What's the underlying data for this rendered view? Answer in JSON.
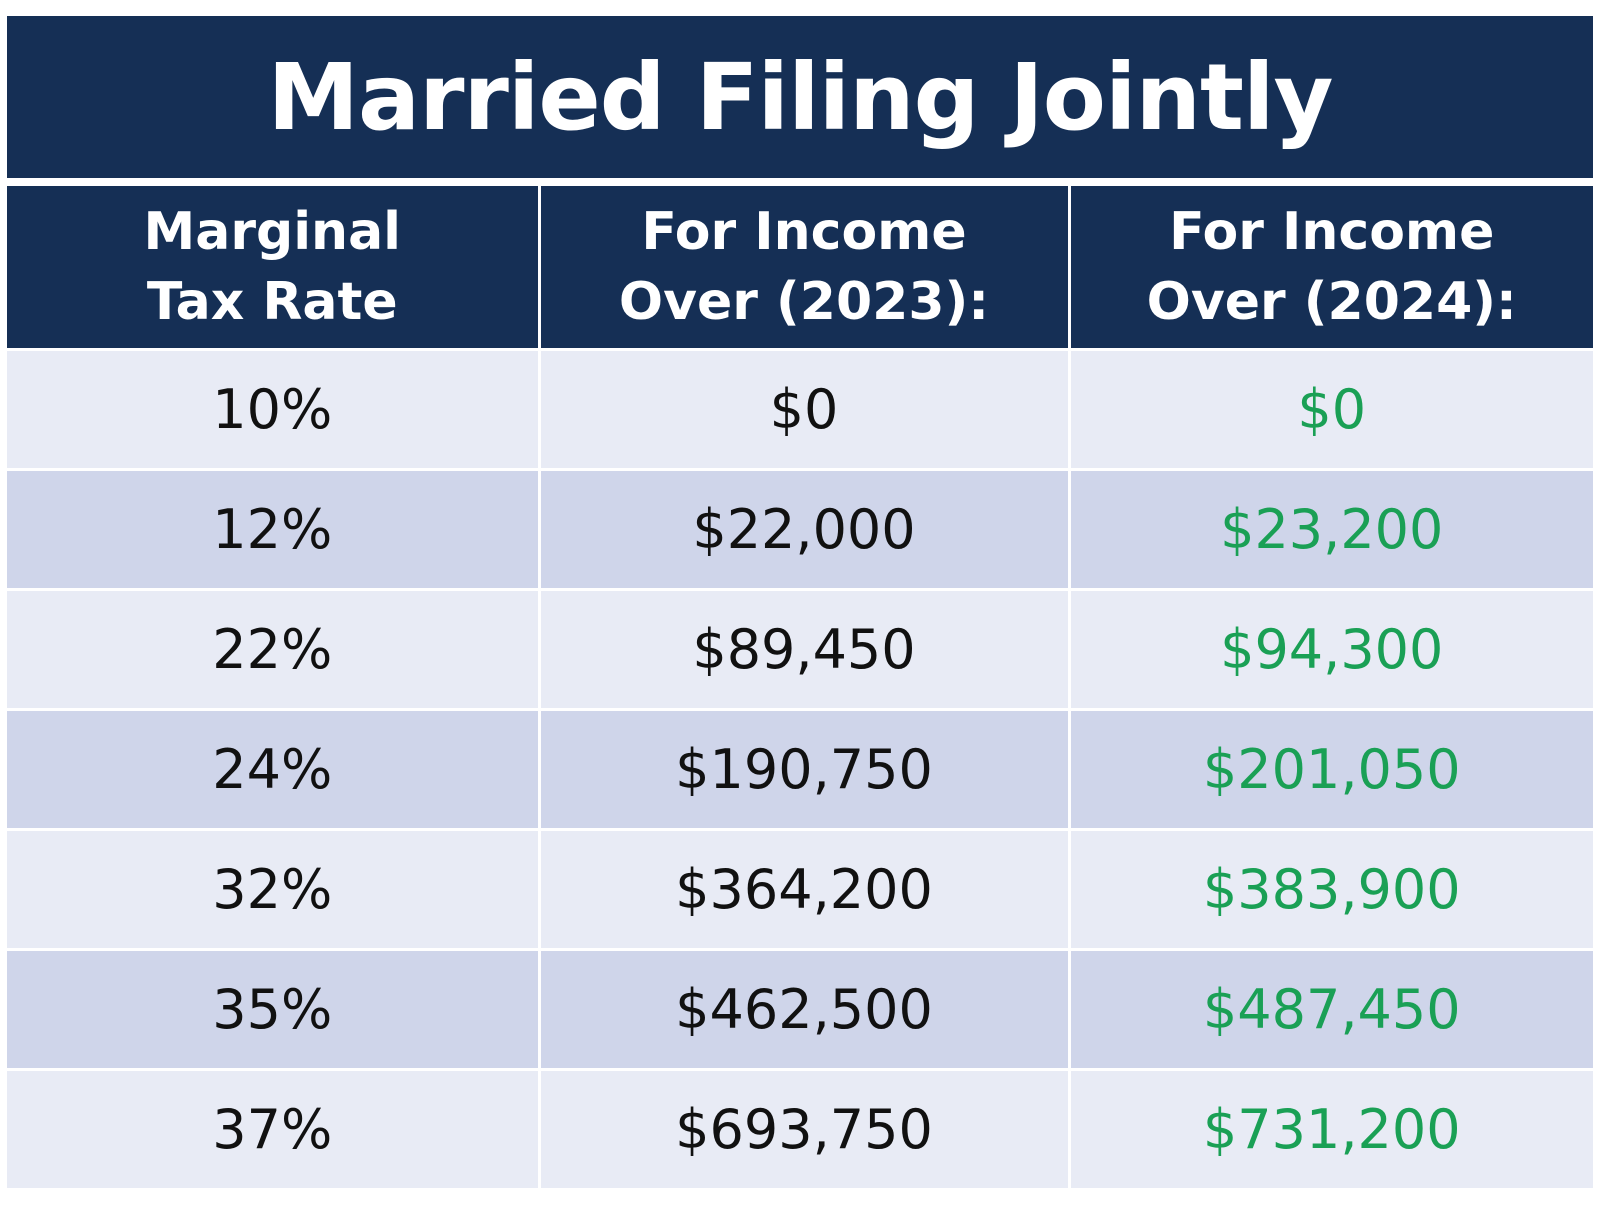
{
  "title": "Married Filing Jointly",
  "colors": {
    "header_bg": "#152f55",
    "header_text": "#ffffff",
    "row_light": "#e8ebf5",
    "row_dark": "#cfd5ea",
    "value_2024": "#1aa055",
    "value_text": "#111111"
  },
  "headers": [
    {
      "line1": "Marginal",
      "line2": "Tax Rate"
    },
    {
      "line1": "For Income",
      "line2": "Over (2023):"
    },
    {
      "line1": "For Income",
      "line2": "Over (2024):"
    }
  ],
  "rows": [
    {
      "rate": "10%",
      "y2023": "$0",
      "y2024": "$0"
    },
    {
      "rate": "12%",
      "y2023": "$22,000",
      "y2024": "$23,200"
    },
    {
      "rate": "22%",
      "y2023": "$89,450",
      "y2024": "$94,300"
    },
    {
      "rate": "24%",
      "y2023": "$190,750",
      "y2024": "$201,050"
    },
    {
      "rate": "32%",
      "y2023": "$364,200",
      "y2024": "$383,900"
    },
    {
      "rate": "35%",
      "y2023": "$462,500",
      "y2024": "$487,450"
    },
    {
      "rate": "37%",
      "y2023": "$693,750",
      "y2024": "$731,200"
    }
  ],
  "chart_data": {
    "type": "table",
    "title": "Married Filing Jointly",
    "columns": [
      "Marginal Tax Rate",
      "For Income Over (2023):",
      "For Income Over (2024):"
    ],
    "rows": [
      [
        "10%",
        "$0",
        "$0"
      ],
      [
        "12%",
        "$22,000",
        "$23,200"
      ],
      [
        "22%",
        "$89,450",
        "$94,300"
      ],
      [
        "24%",
        "$190,750",
        "$201,050"
      ],
      [
        "32%",
        "$364,200",
        "$383,900"
      ],
      [
        "35%",
        "$462,500",
        "$487,450"
      ],
      [
        "37%",
        "$693,750",
        "$731,200"
      ]
    ]
  }
}
